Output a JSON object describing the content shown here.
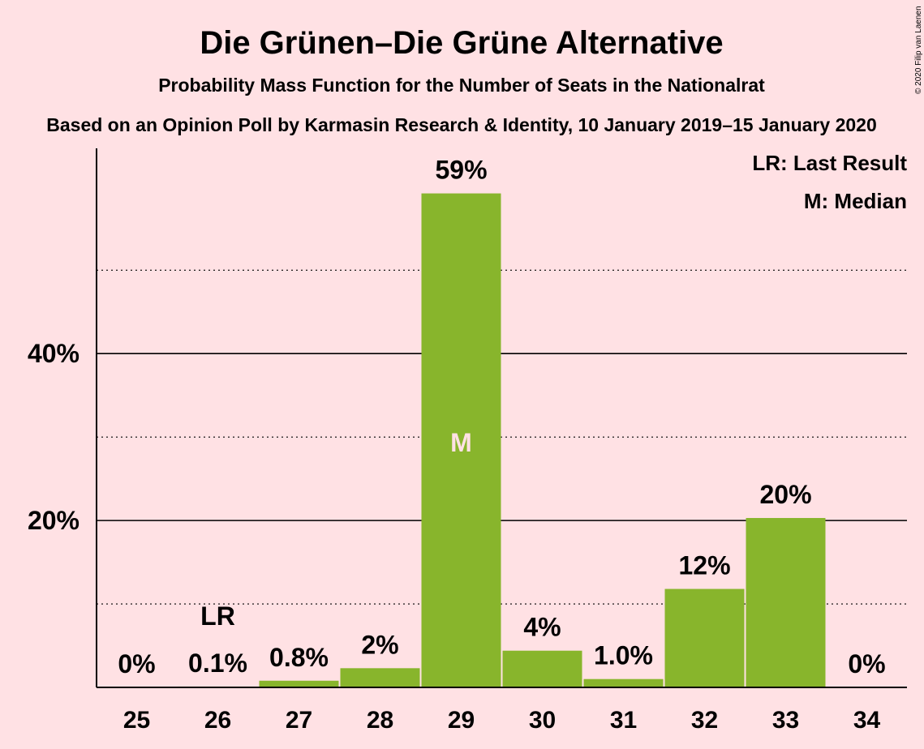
{
  "chart_data": {
    "type": "bar",
    "title": "Die Grünen–Die Grüne Alternative",
    "subtitle": "Probability Mass Function for the Number of Seats in the Nationalrat",
    "subtitle2": "Based on an Opinion Poll by Karmasin Research & Identity, 10 January 2019–15 January 2020",
    "copyright": "© 2020 Filip van Laenen",
    "categories": [
      "25",
      "26",
      "27",
      "28",
      "29",
      "30",
      "31",
      "32",
      "33",
      "34"
    ],
    "values": [
      0,
      0.1,
      0.8,
      2.3,
      59.2,
      4.4,
      1.0,
      11.8,
      20.3,
      0
    ],
    "labels": [
      "0%",
      "0.1%",
      "0.8%",
      "2%",
      "59%",
      "4%",
      "1.0%",
      "12%",
      "20%",
      "0%"
    ],
    "ylim": [
      0,
      64.6
    ],
    "yticks": [
      20,
      40
    ],
    "ytick_labels": [
      "20%",
      "40%"
    ],
    "minor_gridlines": [
      10,
      30,
      50
    ],
    "last_result": {
      "category": "26",
      "marker": "LR"
    },
    "median": {
      "category": "29",
      "marker": "M"
    },
    "legend": [
      "LR: Last Result",
      "M: Median"
    ],
    "legend_position": "top-right",
    "bar_color": "#88B52C",
    "background": "#FFE1E4"
  }
}
